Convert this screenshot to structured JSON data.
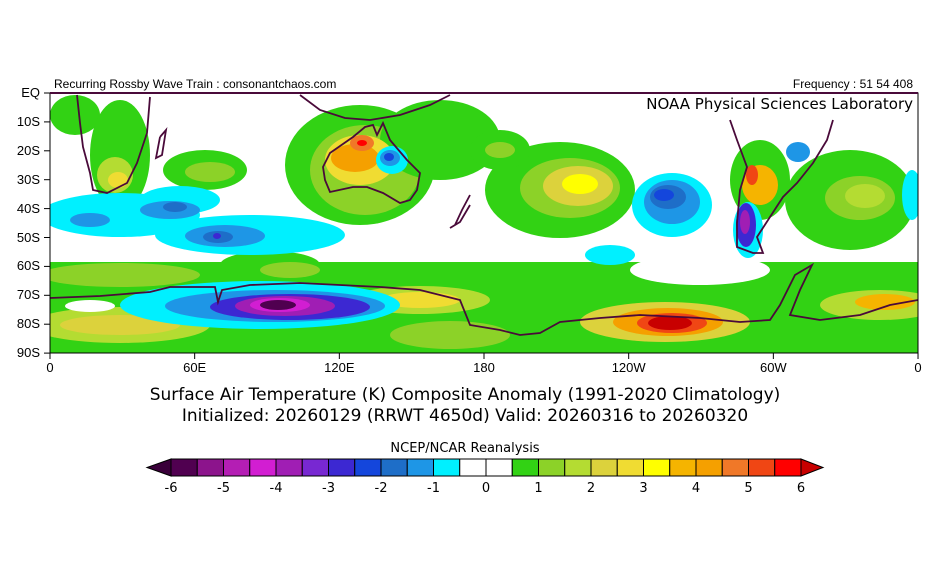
{
  "header": {
    "left": "Recurring Rossby Wave Train : consonantchaos.com",
    "right": "Frequency : 51 54 408",
    "lab": "NOAA Physical Sciences Laboratory"
  },
  "map": {
    "lat_labels": [
      "EQ",
      "10S",
      "20S",
      "30S",
      "40S",
      "50S",
      "60S",
      "70S",
      "80S",
      "90S"
    ],
    "lon_labels": [
      "0",
      "60E",
      "120E",
      "180",
      "120W",
      "60W",
      "0"
    ]
  },
  "title": {
    "line1": "Surface Air Temperature (K) Composite Anomaly (1991-2020 Climatology)",
    "line2": "Initialized: 20260129 (RRWT 4650d) Valid: 20260316 to 20260320"
  },
  "colorbar": {
    "title": "NCEP/NCAR Reanalysis",
    "labels": [
      "-6",
      "-5",
      "-4",
      "-3",
      "-2",
      "-1",
      "0",
      "1",
      "2",
      "3",
      "4",
      "5",
      "6"
    ],
    "colors": [
      "#500050",
      "#8c148c",
      "#b41eb4",
      "#d21ed2",
      "#a01eb4",
      "#7828d2",
      "#3c28d2",
      "#1446dc",
      "#1e6ec8",
      "#1e96e6",
      "#00f0ff",
      "#ffffff",
      "#ffffff",
      "#32d214",
      "#8cd228",
      "#b4dc32",
      "#dcd23c",
      "#f0dc32",
      "#ffff00",
      "#f5b400",
      "#f5a000",
      "#f07828",
      "#f04614",
      "#ff0000"
    ],
    "under_color": "#3a003a",
    "over_color": "#c80000"
  }
}
